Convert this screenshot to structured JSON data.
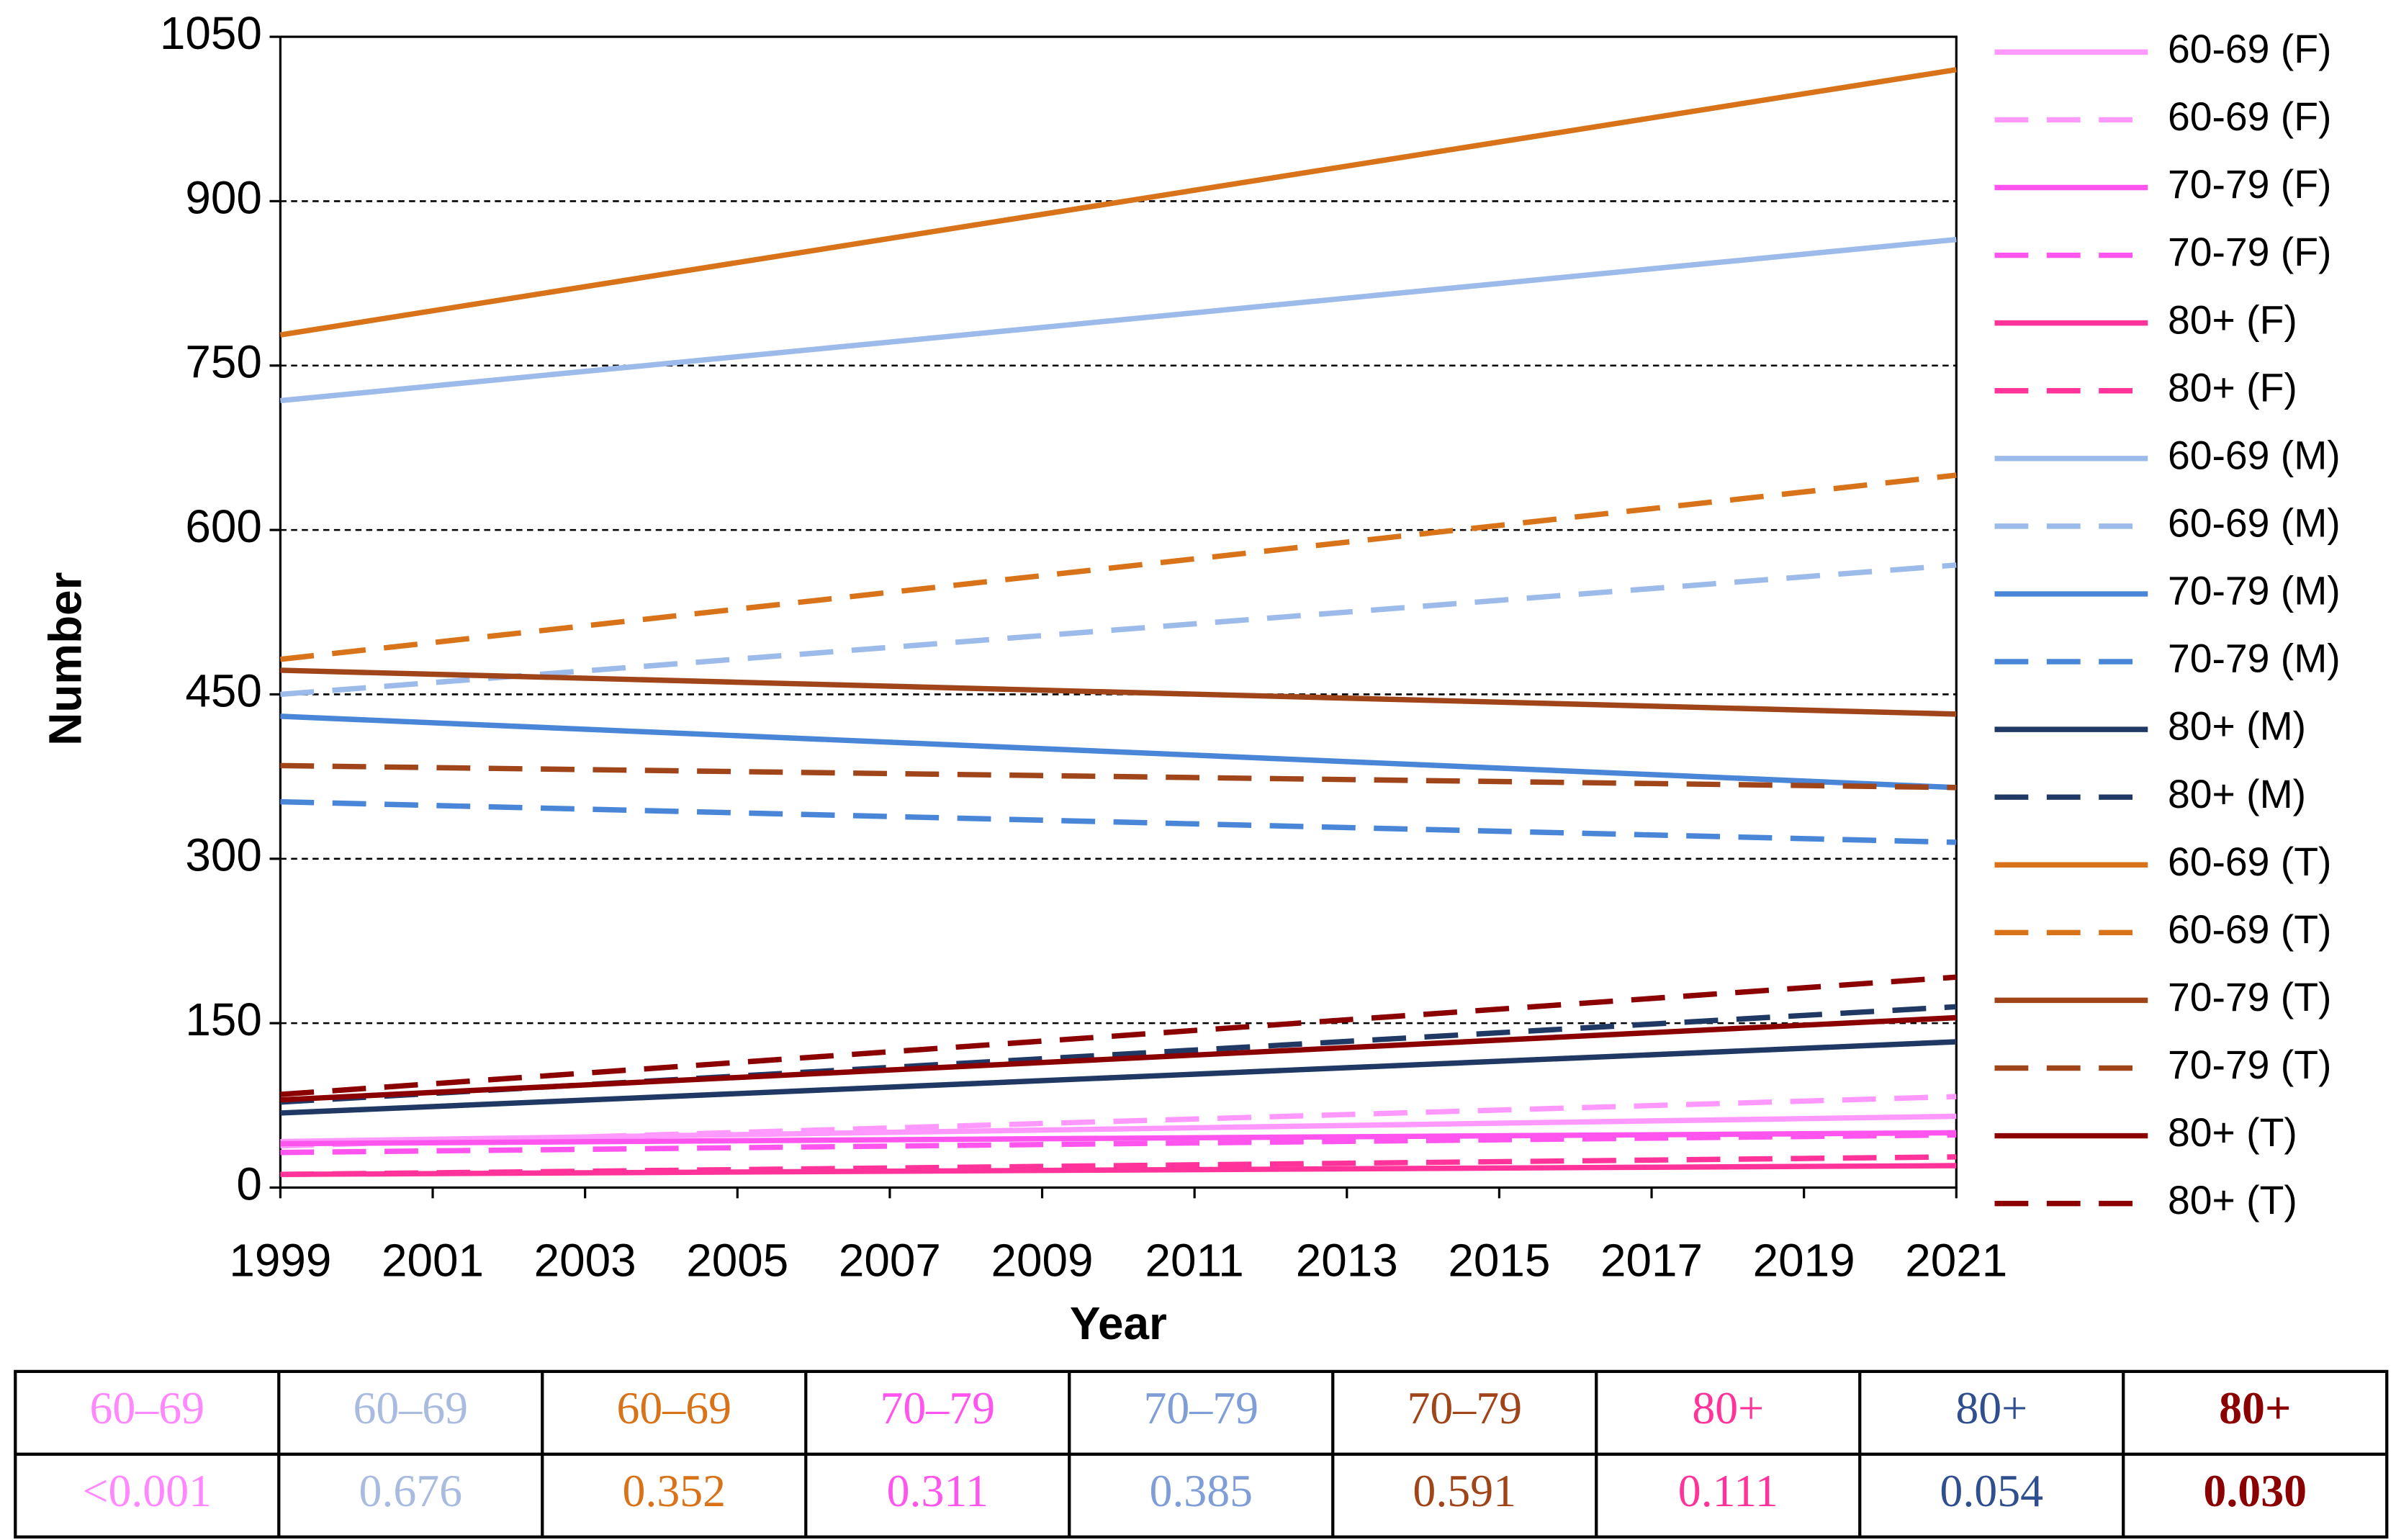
{
  "chart_data": {
    "type": "line",
    "x_label": "Year",
    "y_label": "Number",
    "x": [
      1999,
      2021
    ],
    "xlim": [
      1999,
      2021
    ],
    "xticks": [
      1999,
      2001,
      2003,
      2005,
      2007,
      2009,
      2011,
      2013,
      2015,
      2017,
      2019,
      2021
    ],
    "ylim": [
      0,
      1050
    ],
    "yticks": [
      0,
      150,
      300,
      450,
      600,
      750,
      900,
      1050
    ],
    "grid": true,
    "legend": "right",
    "series": [
      {
        "name": "60-69 (F)",
        "color": "#ff99ff",
        "dashed": false,
        "values": [
          42,
          65
        ]
      },
      {
        "name": "60-69 (F)",
        "color": "#ff99ff",
        "dashed": true,
        "values": [
          38,
          83
        ]
      },
      {
        "name": "70-79 (F)",
        "color": "#ff55ee",
        "dashed": false,
        "values": [
          40,
          50
        ]
      },
      {
        "name": "70-79 (F)",
        "color": "#ff55ee",
        "dashed": true,
        "values": [
          32,
          48
        ]
      },
      {
        "name": "80+ (F)",
        "color": "#ff3399",
        "dashed": false,
        "values": [
          12,
          20
        ]
      },
      {
        "name": "80+ (F)",
        "color": "#ff3399",
        "dashed": true,
        "values": [
          12,
          28
        ]
      },
      {
        "name": "60-69 (M)",
        "color": "#9dbbea",
        "dashed": false,
        "values": [
          718,
          865
        ]
      },
      {
        "name": "60-69 (M)",
        "color": "#9dbbea",
        "dashed": true,
        "values": [
          450,
          568
        ]
      },
      {
        "name": "70-79 (M)",
        "color": "#4a86d8",
        "dashed": false,
        "values": [
          430,
          365
        ]
      },
      {
        "name": "70-79 (M)",
        "color": "#4a86d8",
        "dashed": true,
        "values": [
          352,
          315
        ]
      },
      {
        "name": "80+ (M)",
        "color": "#1f3864",
        "dashed": false,
        "values": [
          68,
          133
        ]
      },
      {
        "name": "80+ (M)",
        "color": "#1f3864",
        "dashed": true,
        "values": [
          78,
          165
        ]
      },
      {
        "name": "60-69 (T)",
        "color": "#d9731a",
        "dashed": false,
        "values": [
          778,
          1020
        ]
      },
      {
        "name": "60-69 (T)",
        "color": "#d9731a",
        "dashed": true,
        "values": [
          482,
          650
        ]
      },
      {
        "name": "70-79 (T)",
        "color": "#a0441a",
        "dashed": false,
        "values": [
          472,
          432
        ]
      },
      {
        "name": "70-79 (T)",
        "color": "#a0441a",
        "dashed": true,
        "values": [
          385,
          365
        ]
      },
      {
        "name": "80+ (T)",
        "color": "#8b0000",
        "dashed": false,
        "values": [
          80,
          155
        ]
      },
      {
        "name": "80+ (T)",
        "color": "#8b0000",
        "dashed": true,
        "values": [
          85,
          192
        ]
      }
    ]
  },
  "table": {
    "headers": [
      "60–69",
      "60–69",
      "60–69",
      "70–79",
      "70–79",
      "70–79",
      "80+",
      "80+",
      "80+"
    ],
    "values": [
      "<0.001",
      "0.676",
      "0.352",
      "0.311",
      "0.385",
      "0.591",
      "0.111",
      "0.054",
      "0.030"
    ],
    "colors": [
      "#ff88ff",
      "#a9bce0",
      "#d9731a",
      "#ff55ee",
      "#7f9ed8",
      "#a0441a",
      "#ff3399",
      "#2f4f8f",
      "#8b0000"
    ]
  }
}
